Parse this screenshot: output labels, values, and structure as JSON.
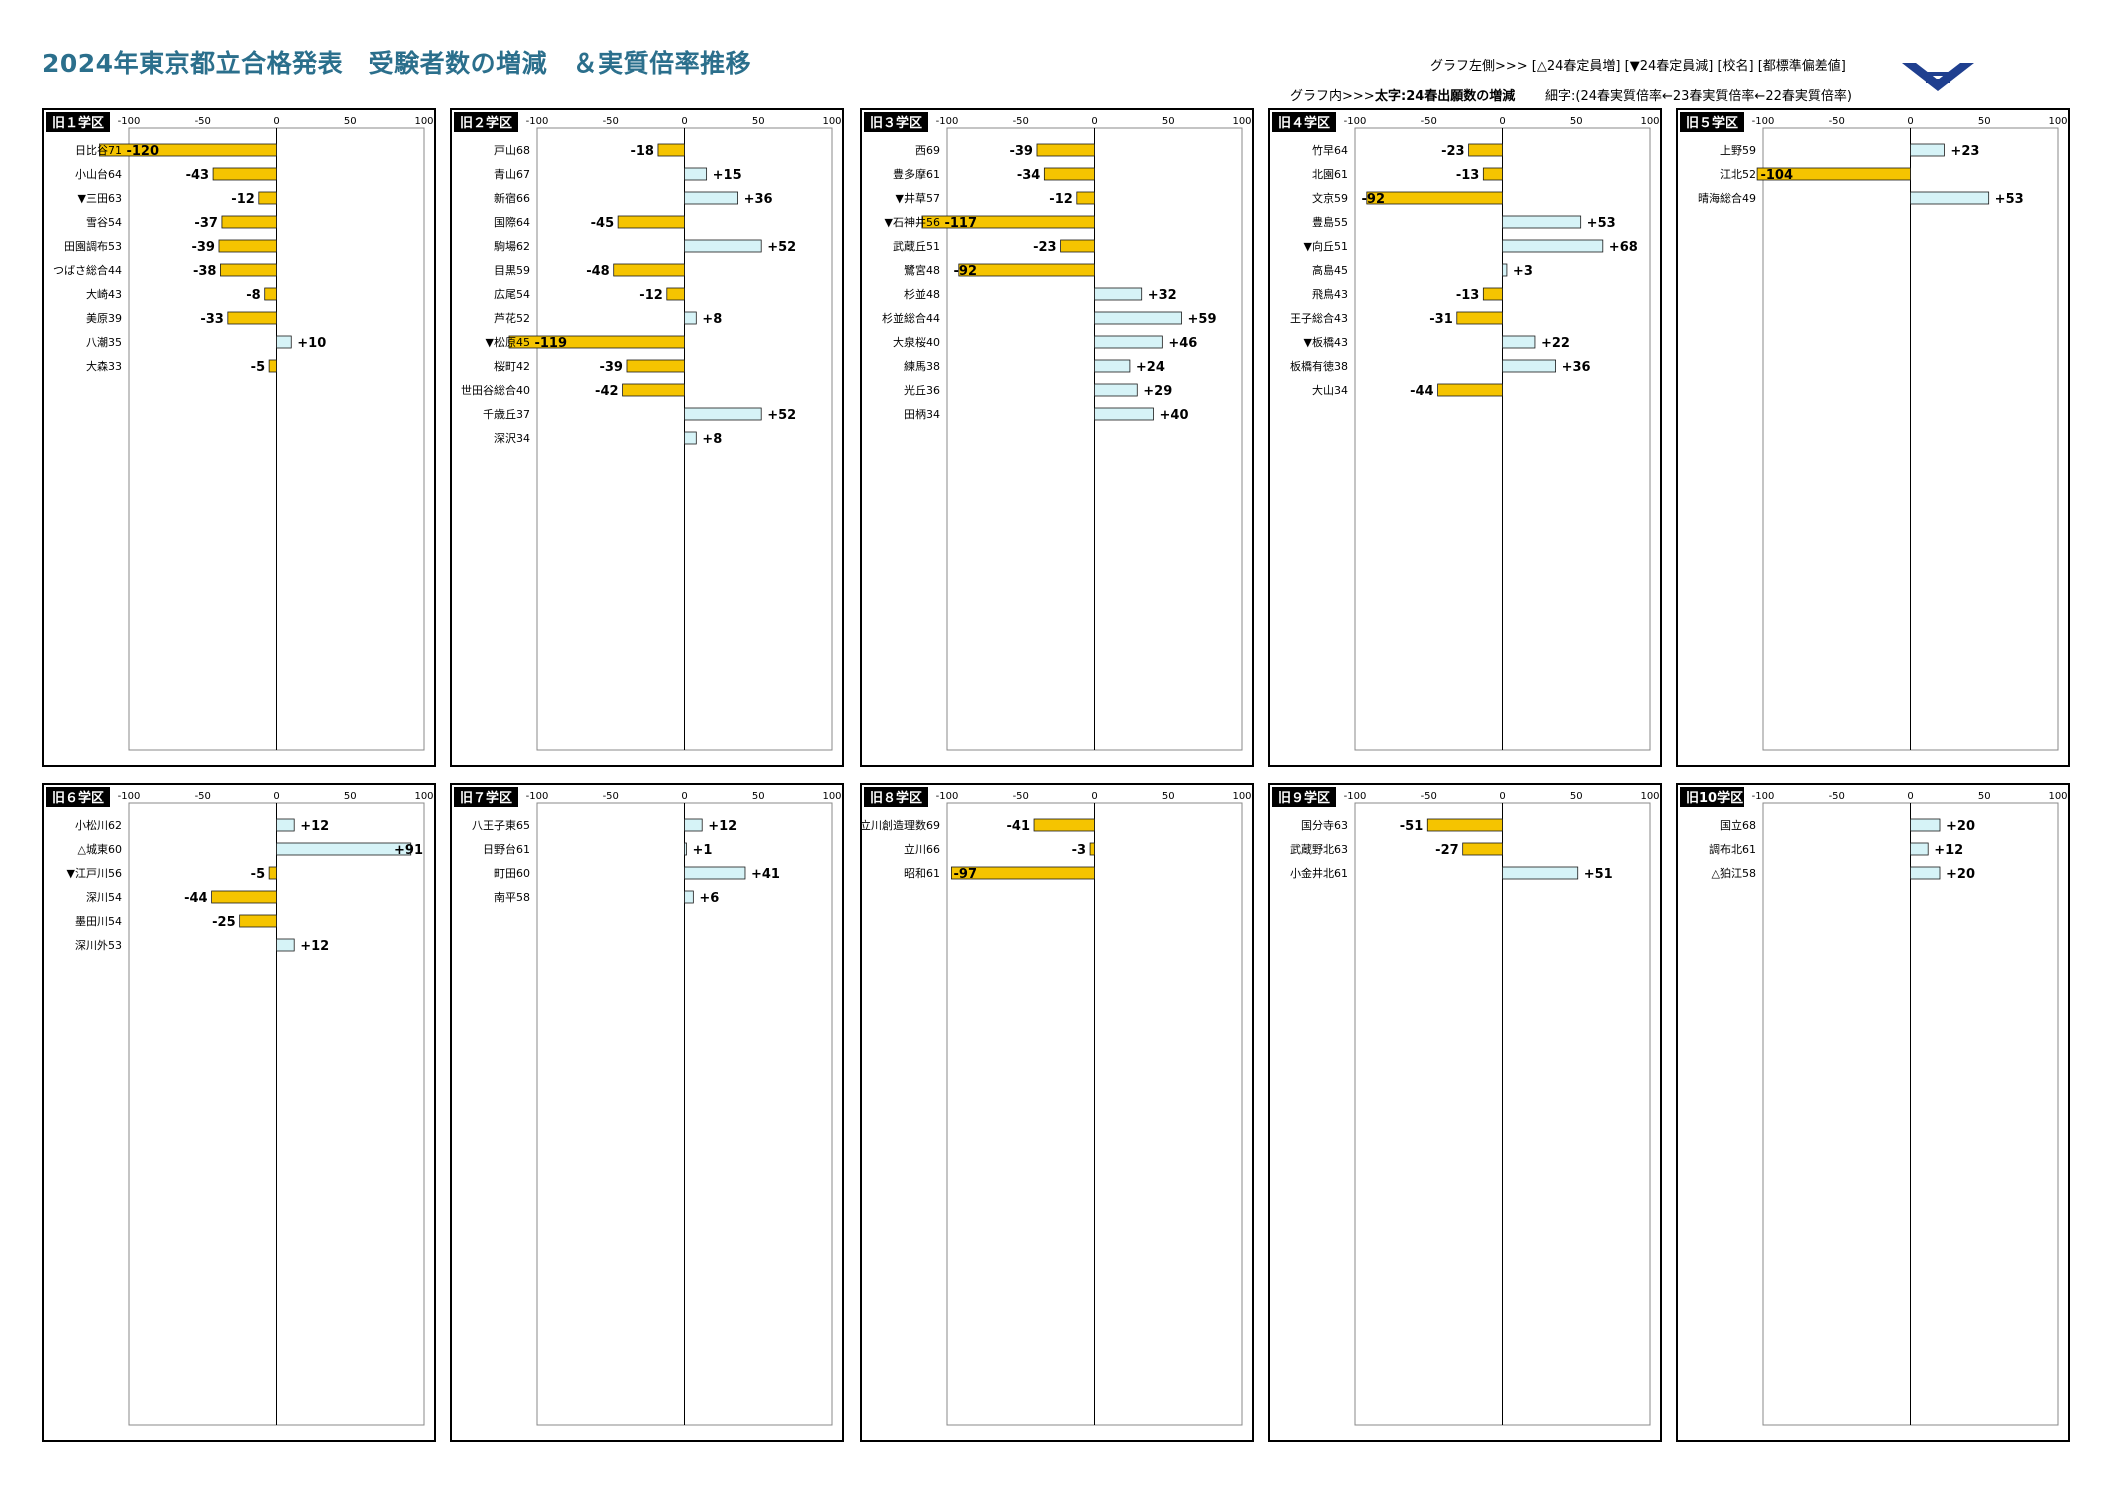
{
  "title": "2024年東京都立合格発表　受験者数の増減　＆実質倍率推移",
  "legend": {
    "left_side": "グラフ左側>>> [△24春定員増] [▼24春定員減] [校名] [都標準偏差値]",
    "inner_label": "グラフ内>>>",
    "inner_bold": "太字:24春出願数の増減",
    "inner_fine": "細字:(24春実質倍率←23春実質倍率←22春実質倍率)"
  },
  "colors": {
    "decrease": "#f5c400",
    "increase": "#d6f3f7",
    "title": "#2b6f8c",
    "logo": "#1f3f8f"
  },
  "chart_data": [
    {
      "type": "bar",
      "orientation": "horizontal",
      "title": "旧１学区",
      "xlim": [
        -100,
        100
      ],
      "xticks": [
        "-100",
        "-50",
        "0",
        "50",
        "100"
      ],
      "categories": [
        "日比谷71",
        "小山台64",
        "▼三田63",
        "雪谷54",
        "田園調布53",
        "つばさ総合44",
        "大崎43",
        "美原39",
        "八潮35",
        "大森33"
      ],
      "values": [
        -120,
        -43,
        -12,
        -37,
        -39,
        -38,
        -8,
        -33,
        10,
        -5
      ],
      "value_labels": [
        "-120",
        "-43",
        "-12",
        "-37",
        "-39",
        "-38",
        "-8",
        "-33",
        "+10",
        "-5"
      ]
    },
    {
      "type": "bar",
      "orientation": "horizontal",
      "title": "旧２学区",
      "xlim": [
        -100,
        100
      ],
      "xticks": [
        "-100",
        "-50",
        "0",
        "50",
        "100"
      ],
      "categories": [
        "戸山68",
        "青山67",
        "新宿66",
        "国際64",
        "駒場62",
        "目黒59",
        "広尾54",
        "芦花52",
        "▼松原45",
        "桜町42",
        "世田谷総合40",
        "千歳丘37",
        "深沢34"
      ],
      "values": [
        -18,
        15,
        36,
        -45,
        52,
        -48,
        -12,
        8,
        -119,
        -39,
        -42,
        52,
        8
      ],
      "value_labels": [
        "-18",
        "+15",
        "+36",
        "-45",
        "+52",
        "-48",
        "-12",
        "+8",
        "-119",
        "-39",
        "-42",
        "+52",
        "+8"
      ]
    },
    {
      "type": "bar",
      "orientation": "horizontal",
      "title": "旧３学区",
      "xlim": [
        -100,
        100
      ],
      "xticks": [
        "-100",
        "-50",
        "0",
        "50",
        "100"
      ],
      "categories": [
        "西69",
        "豊多摩61",
        "▼井草57",
        "▼石神井56",
        "武蔵丘51",
        "鷺宮48",
        "杉並48",
        "杉並総合44",
        "大泉桜40",
        "練馬38",
        "光丘36",
        "田柄34"
      ],
      "values": [
        -39,
        -34,
        -12,
        -117,
        -23,
        -92,
        32,
        59,
        46,
        24,
        29,
        40
      ],
      "value_labels": [
        "-39",
        "-34",
        "-12",
        "-117",
        "-23",
        "-92",
        "+32",
        "+59",
        "+46",
        "+24",
        "+29",
        "+40"
      ]
    },
    {
      "type": "bar",
      "orientation": "horizontal",
      "title": "旧４学区",
      "xlim": [
        -100,
        100
      ],
      "xticks": [
        "-100",
        "-50",
        "0",
        "50",
        "100"
      ],
      "categories": [
        "竹早64",
        "北園61",
        "文京59",
        "豊島55",
        "▼向丘51",
        "高島45",
        "飛鳥43",
        "王子総合43",
        "▼板橋43",
        "板橋有徳38",
        "大山34"
      ],
      "values": [
        -23,
        -13,
        -92,
        53,
        68,
        3,
        -13,
        -31,
        22,
        36,
        -44
      ],
      "value_labels": [
        "-23",
        "-13",
        "-92",
        "+53",
        "+68",
        "+3",
        "-13",
        "-31",
        "+22",
        "+36",
        "-44"
      ]
    },
    {
      "type": "bar",
      "orientation": "horizontal",
      "title": "旧５学区",
      "xlim": [
        -100,
        100
      ],
      "xticks": [
        "-100",
        "-50",
        "0",
        "50",
        "100"
      ],
      "categories": [
        "上野59",
        "江北52",
        "晴海総合49"
      ],
      "values": [
        23,
        -104,
        53
      ],
      "value_labels": [
        "+23",
        "-104",
        "+53"
      ]
    },
    {
      "type": "bar",
      "orientation": "horizontal",
      "title": "旧６学区",
      "xlim": [
        -100,
        100
      ],
      "xticks": [
        "-100",
        "-50",
        "0",
        "50",
        "100"
      ],
      "categories": [
        "小松川62",
        "△城東60",
        "▼江戸川56",
        "深川54",
        "墨田川54",
        "深川外53"
      ],
      "values": [
        12,
        91,
        -5,
        -44,
        -25,
        12
      ],
      "value_labels": [
        "+12",
        "+91",
        "-5",
        "-44",
        "-25",
        "+12"
      ]
    },
    {
      "type": "bar",
      "orientation": "horizontal",
      "title": "旧７学区",
      "xlim": [
        -100,
        100
      ],
      "xticks": [
        "-100",
        "-50",
        "0",
        "50",
        "100"
      ],
      "categories": [
        "八王子東65",
        "日野台61",
        "町田60",
        "南平58"
      ],
      "values": [
        12,
        1,
        41,
        6
      ],
      "value_labels": [
        "+12",
        "+1",
        "+41",
        "+6"
      ]
    },
    {
      "type": "bar",
      "orientation": "horizontal",
      "title": "旧８学区",
      "xlim": [
        -100,
        100
      ],
      "xticks": [
        "-100",
        "-50",
        "0",
        "50",
        "100"
      ],
      "categories": [
        "立川創造理数69",
        "立川66",
        "昭和61"
      ],
      "values": [
        -41,
        -3,
        -97
      ],
      "value_labels": [
        "-41",
        "-3",
        "-97"
      ]
    },
    {
      "type": "bar",
      "orientation": "horizontal",
      "title": "旧９学区",
      "xlim": [
        -100,
        100
      ],
      "xticks": [
        "-100",
        "-50",
        "0",
        "50",
        "100"
      ],
      "categories": [
        "国分寺63",
        "武蔵野北63",
        "小金井北61"
      ],
      "values": [
        -51,
        -27,
        51
      ],
      "value_labels": [
        "-51",
        "-27",
        "+51"
      ]
    },
    {
      "type": "bar",
      "orientation": "horizontal",
      "title": "旧10学区",
      "xlim": [
        -100,
        100
      ],
      "xticks": [
        "-100",
        "-50",
        "0",
        "50",
        "100"
      ],
      "categories": [
        "国立68",
        "調布北61",
        "△狛江58"
      ],
      "values": [
        20,
        12,
        20
      ],
      "value_labels": [
        "+20",
        "+12",
        "+20"
      ]
    }
  ]
}
